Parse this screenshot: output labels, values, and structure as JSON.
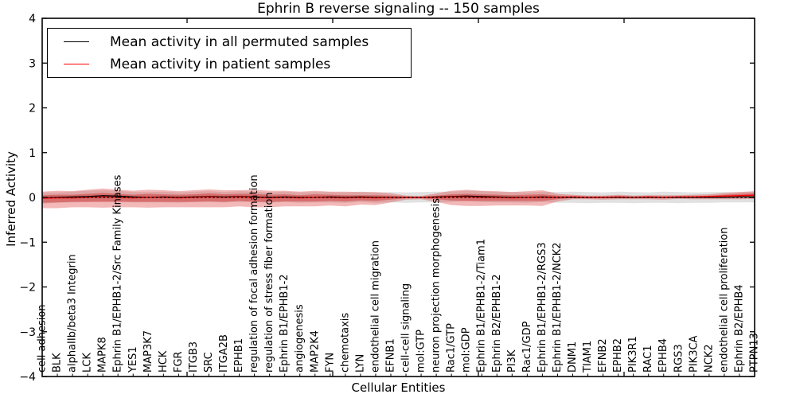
{
  "figure": {
    "title": "Ephrin B reverse signaling -- 150 samples",
    "xlabel": "Cellular Entities",
    "ylabel": "Inferred Activity"
  },
  "legend": {
    "entries": [
      {
        "label": "Mean activity in all permuted samples",
        "color": "#000000"
      },
      {
        "label": "Mean activity in patient samples",
        "color": "#ff0000"
      }
    ]
  },
  "chart_data": {
    "type": "line",
    "title": "Ephrin B reverse signaling -- 150 samples",
    "xlabel": "Cellular Entities",
    "ylabel": "Inferred Activity",
    "ylim": [
      -4,
      4
    ],
    "ytick_labels": [
      "4",
      "3",
      "2",
      "1",
      "0",
      "−1",
      "−2",
      "−3",
      "−4"
    ],
    "grid": false,
    "legend_position": "upper left",
    "zero_line": {
      "y": 0,
      "style": "dashed",
      "color": "#000000"
    },
    "categories": [
      "cell adhesion",
      "BLK",
      "alphaIIb/beta3 Integrin",
      "LCK",
      "MAPK8",
      "Ephrin B1/EPHB1-2/Src Family Kinases",
      "YES1",
      "MAP3K7",
      "HCK",
      "FGR",
      "ITGB3",
      "SRC",
      "ITGA2B",
      "EPHB1",
      "regulation of focal adhesion formation",
      "regulation of stress fiber formation",
      "Ephrin B1/EPHB1-2",
      "angiogenesis",
      "MAP2K4",
      "FYN",
      "chemotaxis",
      "LYN",
      "endothelial cell migration",
      "EFNB1",
      "cell-cell signaling",
      "mol:GTP",
      "neuron projection morphogenesis",
      "Rac1/GTP",
      "mol:GDP",
      "Ephrin B1/EPHB1-2/Tiam1",
      "Ephrin B2/EPHB1-2",
      "PI3K",
      "Rac1/GDP",
      "Ephrin B1/EPHB1-2/RGS3",
      "Ephrin B1/EPHB1-2/NCK2",
      "DNM1",
      "TIAM1",
      "EFNB2",
      "EPHB2",
      "PIK3R1",
      "RAC1",
      "EPHB4",
      "RGS3",
      "PIK3CA",
      "NCK2",
      "endothelial cell proliferation",
      "Ephrin B2/EPHB4",
      "PTPN13"
    ],
    "series": [
      {
        "name": "Mean activity in all permuted samples",
        "color": "#000000",
        "values": [
          -0.01,
          0,
          0.01,
          0.02,
          0.04,
          0.03,
          0.01,
          0,
          0.01,
          0,
          0.01,
          0.02,
          0.01,
          0.02,
          0.01,
          0,
          0.01,
          0,
          0,
          0.01,
          0,
          0.01,
          0,
          0,
          0,
          0,
          0.01,
          0.02,
          0.03,
          0.02,
          0.01,
          0,
          0,
          0.01,
          0,
          0,
          0,
          0,
          0,
          0,
          0,
          0,
          0,
          0,
          0,
          0,
          0.01,
          0.01
        ]
      },
      {
        "name": "Mean activity in patient samples",
        "color": "#ff0000",
        "values": [
          -0.02,
          -0.01,
          -0.01,
          0,
          0.01,
          0,
          -0.01,
          0,
          0,
          -0.01,
          0,
          0.01,
          0,
          0.01,
          0,
          -0.01,
          0,
          -0.01,
          0,
          0,
          -0.01,
          0,
          -0.01,
          0,
          0,
          0,
          0,
          0.01,
          0.01,
          0,
          0,
          -0.01,
          0,
          0,
          0,
          0.01,
          0,
          0,
          0.01,
          0,
          0.01,
          0,
          0.01,
          0.01,
          0.02,
          0.03,
          0.04,
          0.05
        ]
      }
    ],
    "bands": [
      {
        "name": "permuted-samples-spread",
        "series": 0,
        "color": "#aaaaaa",
        "opacity": 0.35,
        "upper": [
          0.12,
          0.11,
          0.12,
          0.13,
          0.12,
          0.12,
          0.11,
          0.12,
          0.12,
          0.11,
          0.12,
          0.12,
          0.11,
          0.12,
          0.12,
          0.11,
          0.12,
          0.11,
          0.12,
          0.11,
          0.11,
          0.12,
          0.11,
          0.12,
          0.11,
          0.12,
          0.12,
          0.11,
          0.12,
          0.12,
          0.11,
          0.12,
          0.11,
          0.12,
          0.12,
          0.13,
          0.12,
          0.11,
          0.13,
          0.12,
          0.11,
          0.13,
          0.12,
          0.11,
          0.12,
          0.12,
          0.11,
          0.12
        ],
        "lower": [
          0.13,
          0.12,
          0.12,
          0.12,
          0.13,
          0.12,
          0.12,
          0.11,
          0.12,
          0.12,
          0.11,
          0.12,
          0.12,
          0.12,
          0.11,
          0.12,
          0.11,
          0.12,
          0.11,
          0.12,
          0.12,
          0.11,
          0.12,
          0.11,
          0.12,
          0.11,
          0.12,
          0.12,
          0.11,
          0.12,
          0.12,
          0.11,
          0.12,
          0.11,
          0.12,
          0.12,
          0.13,
          0.12,
          0.12,
          0.13,
          0.12,
          0.12,
          0.13,
          0.12,
          0.12,
          0.11,
          0.12,
          0.12
        ]
      },
      {
        "name": "patient-samples-spread-outer",
        "series": 1,
        "color": "#dd3333",
        "opacity": 0.35,
        "upper": [
          0.15,
          0.16,
          0.15,
          0.17,
          0.19,
          0.17,
          0.16,
          0.17,
          0.16,
          0.15,
          0.16,
          0.17,
          0.16,
          0.15,
          0.17,
          0.16,
          0.15,
          0.14,
          0.15,
          0.13,
          0.14,
          0.12,
          0.13,
          0.09,
          0.04,
          0.03,
          0.09,
          0.14,
          0.16,
          0.15,
          0.14,
          0.13,
          0.14,
          0.16,
          0.08,
          0.05,
          0.04,
          0.04,
          0.05,
          0.04,
          0.04,
          0.05,
          0.04,
          0.05,
          0.05,
          0.07,
          0.08,
          0.09
        ],
        "lower": [
          0.22,
          0.23,
          0.21,
          0.22,
          0.24,
          0.22,
          0.21,
          0.23,
          0.22,
          0.21,
          0.22,
          0.23,
          0.22,
          0.21,
          0.22,
          0.21,
          0.2,
          0.19,
          0.2,
          0.18,
          0.19,
          0.16,
          0.16,
          0.11,
          0.05,
          0.04,
          0.1,
          0.18,
          0.2,
          0.19,
          0.18,
          0.17,
          0.18,
          0.19,
          0.09,
          0.05,
          0.04,
          0.05,
          0.05,
          0.04,
          0.05,
          0.05,
          0.04,
          0.05,
          0.06,
          0.07,
          0.08,
          0.08
        ]
      },
      {
        "name": "patient-samples-spread-inner",
        "series": 1,
        "color": "#cc2222",
        "opacity": 0.42,
        "upper": [
          0.07,
          0.07,
          0.07,
          0.08,
          0.09,
          0.08,
          0.07,
          0.08,
          0.07,
          0.07,
          0.07,
          0.08,
          0.07,
          0.07,
          0.08,
          0.07,
          0.07,
          0.06,
          0.07,
          0.06,
          0.06,
          0.05,
          0.06,
          0.04,
          0.02,
          0.01,
          0.04,
          0.06,
          0.07,
          0.07,
          0.06,
          0.06,
          0.06,
          0.07,
          0.04,
          0.02,
          0.02,
          0.02,
          0.02,
          0.02,
          0.02,
          0.02,
          0.02,
          0.02,
          0.02,
          0.03,
          0.04,
          0.04
        ],
        "lower": [
          0.1,
          0.1,
          0.09,
          0.1,
          0.11,
          0.1,
          0.09,
          0.1,
          0.1,
          0.09,
          0.1,
          0.1,
          0.1,
          0.09,
          0.1,
          0.09,
          0.09,
          0.08,
          0.09,
          0.08,
          0.08,
          0.07,
          0.07,
          0.05,
          0.02,
          0.02,
          0.04,
          0.08,
          0.09,
          0.08,
          0.08,
          0.07,
          0.08,
          0.08,
          0.04,
          0.02,
          0.02,
          0.02,
          0.02,
          0.02,
          0.02,
          0.02,
          0.02,
          0.02,
          0.03,
          0.03,
          0.04,
          0.04
        ]
      }
    ]
  }
}
